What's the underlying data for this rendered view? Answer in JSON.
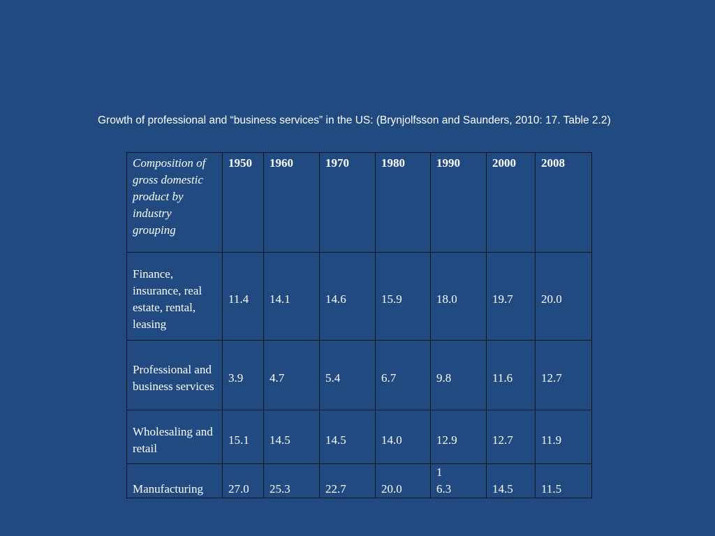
{
  "caption": "Growth of professional and “business services” in the US: (Brynjolfsson and Saunders, 2010: 17. Table 2.2)",
  "table": {
    "header": {
      "stub": "Composition of gross domestic product by industry grouping",
      "years": [
        "1950",
        "1960",
        "1970",
        "1980",
        "1990",
        "2000",
        "2008"
      ]
    },
    "rows": [
      {
        "label": "Finance, insurance, real estate, rental, leasing",
        "values": [
          "11.4",
          "14.1",
          "14.6",
          "15.9",
          "18.0",
          "19.7",
          "20.0"
        ]
      },
      {
        "label": "Professional and business services",
        "values": [
          "3.9",
          "4.7",
          "5.4",
          "6.7",
          "9.8",
          "11.6",
          "12.7"
        ]
      },
      {
        "label": "Wholesaling and retail",
        "values": [
          "15.1",
          "14.5",
          "14.5",
          "14.0",
          "12.9",
          "12.7",
          "11.9"
        ]
      },
      {
        "label": "Manufacturing",
        "values": [
          "27.0",
          "25.3",
          "22.7",
          "20.0",
          "1\n6.3",
          "14.5",
          "11.5"
        ]
      }
    ]
  }
}
